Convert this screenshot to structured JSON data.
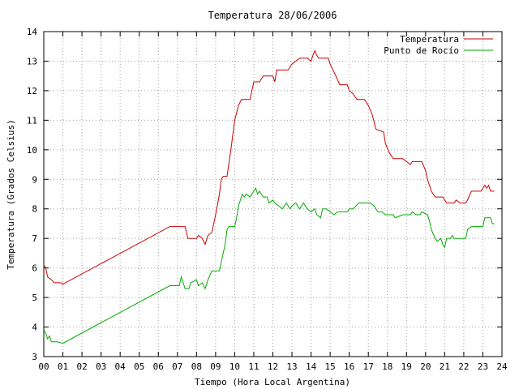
{
  "chart_data": {
    "type": "line",
    "title": "Temperatura 28/06/2006",
    "xlabel": "Tiempo (Hora Local Argentina)",
    "ylabel": "Temperatura (Grados Celsius)",
    "xlim": [
      0,
      24
    ],
    "ylim": [
      3,
      14
    ],
    "xticks": [
      "00",
      "01",
      "02",
      "03",
      "04",
      "05",
      "06",
      "07",
      "08",
      "09",
      "10",
      "11",
      "12",
      "13",
      "14",
      "15",
      "16",
      "17",
      "18",
      "19",
      "20",
      "21",
      "22",
      "23",
      "24"
    ],
    "yticks": [
      "3",
      "4",
      "5",
      "6",
      "7",
      "8",
      "9",
      "10",
      "11",
      "12",
      "13",
      "14"
    ],
    "grid": true,
    "legend_position": "top-right",
    "series": [
      {
        "name": "Temperatura",
        "color": "#cc0000",
        "points": [
          [
            0.0,
            6.1
          ],
          [
            0.1,
            6.0
          ],
          [
            0.2,
            5.7
          ],
          [
            0.4,
            5.6
          ],
          [
            0.55,
            5.5
          ],
          [
            0.9,
            5.5
          ],
          [
            1.0,
            5.45
          ],
          [
            6.6,
            7.4
          ],
          [
            7.4,
            7.4
          ],
          [
            7.55,
            7.0
          ],
          [
            8.0,
            7.0
          ],
          [
            8.1,
            7.1
          ],
          [
            8.3,
            7.0
          ],
          [
            8.45,
            6.8
          ],
          [
            8.6,
            7.1
          ],
          [
            8.8,
            7.2
          ],
          [
            9.0,
            7.8
          ],
          [
            9.2,
            8.5
          ],
          [
            9.3,
            9.0
          ],
          [
            9.4,
            9.1
          ],
          [
            9.6,
            9.1
          ],
          [
            9.8,
            10.0
          ],
          [
            10.0,
            11.0
          ],
          [
            10.2,
            11.5
          ],
          [
            10.35,
            11.7
          ],
          [
            10.8,
            11.7
          ],
          [
            11.0,
            12.3
          ],
          [
            11.3,
            12.3
          ],
          [
            11.5,
            12.5
          ],
          [
            12.0,
            12.5
          ],
          [
            12.1,
            12.3
          ],
          [
            12.2,
            12.7
          ],
          [
            12.8,
            12.7
          ],
          [
            13.0,
            12.9
          ],
          [
            13.2,
            13.0
          ],
          [
            13.4,
            13.1
          ],
          [
            13.8,
            13.1
          ],
          [
            14.0,
            13.0
          ],
          [
            14.1,
            13.2
          ],
          [
            14.2,
            13.35
          ],
          [
            14.3,
            13.2
          ],
          [
            14.4,
            13.1
          ],
          [
            14.9,
            13.1
          ],
          [
            15.0,
            12.9
          ],
          [
            15.3,
            12.5
          ],
          [
            15.5,
            12.2
          ],
          [
            15.9,
            12.2
          ],
          [
            16.0,
            12.0
          ],
          [
            16.2,
            11.9
          ],
          [
            16.4,
            11.7
          ],
          [
            16.8,
            11.7
          ],
          [
            17.0,
            11.5
          ],
          [
            17.2,
            11.2
          ],
          [
            17.4,
            10.7
          ],
          [
            17.8,
            10.6
          ],
          [
            17.9,
            10.2
          ],
          [
            18.1,
            9.9
          ],
          [
            18.3,
            9.7
          ],
          [
            18.8,
            9.7
          ],
          [
            19.0,
            9.6
          ],
          [
            19.2,
            9.5
          ],
          [
            19.3,
            9.6
          ],
          [
            19.8,
            9.6
          ],
          [
            20.0,
            9.3
          ],
          [
            20.1,
            9.0
          ],
          [
            20.3,
            8.6
          ],
          [
            20.5,
            8.4
          ],
          [
            20.9,
            8.4
          ],
          [
            21.0,
            8.3
          ],
          [
            21.1,
            8.2
          ],
          [
            21.5,
            8.2
          ],
          [
            21.6,
            8.3
          ],
          [
            21.8,
            8.2
          ],
          [
            22.1,
            8.2
          ],
          [
            22.2,
            8.3
          ],
          [
            22.4,
            8.6
          ],
          [
            22.9,
            8.6
          ],
          [
            23.0,
            8.7
          ],
          [
            23.1,
            8.8
          ],
          [
            23.2,
            8.7
          ],
          [
            23.3,
            8.8
          ],
          [
            23.4,
            8.6
          ],
          [
            23.6,
            8.6
          ]
        ]
      },
      {
        "name": "Punto de Rocío",
        "color": "#00aa00",
        "points": [
          [
            0.0,
            3.9
          ],
          [
            0.1,
            3.8
          ],
          [
            0.2,
            3.6
          ],
          [
            0.3,
            3.7
          ],
          [
            0.4,
            3.5
          ],
          [
            0.5,
            3.5
          ],
          [
            0.7,
            3.5
          ],
          [
            1.0,
            3.45
          ],
          [
            6.6,
            5.4
          ],
          [
            7.1,
            5.4
          ],
          [
            7.2,
            5.7
          ],
          [
            7.3,
            5.5
          ],
          [
            7.4,
            5.3
          ],
          [
            7.6,
            5.3
          ],
          [
            7.7,
            5.5
          ],
          [
            8.0,
            5.6
          ],
          [
            8.1,
            5.4
          ],
          [
            8.3,
            5.5
          ],
          [
            8.45,
            5.3
          ],
          [
            8.6,
            5.6
          ],
          [
            8.8,
            5.9
          ],
          [
            9.2,
            5.9
          ],
          [
            9.3,
            6.2
          ],
          [
            9.5,
            6.8
          ],
          [
            9.6,
            7.3
          ],
          [
            9.7,
            7.4
          ],
          [
            10.0,
            7.4
          ],
          [
            10.1,
            7.7
          ],
          [
            10.2,
            8.1
          ],
          [
            10.4,
            8.5
          ],
          [
            10.5,
            8.4
          ],
          [
            10.6,
            8.5
          ],
          [
            10.8,
            8.4
          ],
          [
            11.0,
            8.6
          ],
          [
            11.1,
            8.7
          ],
          [
            11.2,
            8.5
          ],
          [
            11.3,
            8.6
          ],
          [
            11.5,
            8.4
          ],
          [
            11.7,
            8.4
          ],
          [
            11.8,
            8.2
          ],
          [
            12.0,
            8.3
          ],
          [
            12.1,
            8.2
          ],
          [
            12.3,
            8.1
          ],
          [
            12.5,
            8.0
          ],
          [
            12.7,
            8.2
          ],
          [
            12.9,
            8.0
          ],
          [
            13.0,
            8.1
          ],
          [
            13.2,
            8.2
          ],
          [
            13.4,
            8.0
          ],
          [
            13.6,
            8.2
          ],
          [
            13.8,
            8.0
          ],
          [
            14.0,
            7.9
          ],
          [
            14.2,
            8.0
          ],
          [
            14.3,
            7.8
          ],
          [
            14.5,
            7.7
          ],
          [
            14.6,
            8.0
          ],
          [
            14.8,
            8.0
          ],
          [
            15.0,
            7.9
          ],
          [
            15.2,
            7.8
          ],
          [
            15.4,
            7.9
          ],
          [
            15.9,
            7.9
          ],
          [
            16.0,
            8.0
          ],
          [
            16.2,
            8.0
          ],
          [
            16.5,
            8.2
          ],
          [
            17.1,
            8.2
          ],
          [
            17.3,
            8.1
          ],
          [
            17.5,
            7.9
          ],
          [
            17.7,
            7.9
          ],
          [
            17.9,
            7.8
          ],
          [
            18.1,
            7.8
          ],
          [
            18.3,
            7.8
          ],
          [
            18.4,
            7.7
          ],
          [
            18.8,
            7.8
          ],
          [
            19.2,
            7.8
          ],
          [
            19.3,
            7.9
          ],
          [
            19.5,
            7.8
          ],
          [
            19.7,
            7.8
          ],
          [
            19.8,
            7.9
          ],
          [
            20.1,
            7.8
          ],
          [
            20.2,
            7.6
          ],
          [
            20.3,
            7.3
          ],
          [
            20.5,
            7.0
          ],
          [
            20.6,
            6.9
          ],
          [
            20.8,
            7.0
          ],
          [
            20.9,
            6.8
          ],
          [
            21.0,
            6.7
          ],
          [
            21.1,
            7.0
          ],
          [
            21.3,
            7.0
          ],
          [
            21.4,
            7.1
          ],
          [
            21.5,
            7.0
          ],
          [
            22.1,
            7.0
          ],
          [
            22.2,
            7.3
          ],
          [
            22.4,
            7.4
          ],
          [
            23.0,
            7.4
          ],
          [
            23.1,
            7.7
          ],
          [
            23.4,
            7.7
          ],
          [
            23.5,
            7.5
          ],
          [
            23.6,
            7.5
          ]
        ]
      }
    ]
  }
}
